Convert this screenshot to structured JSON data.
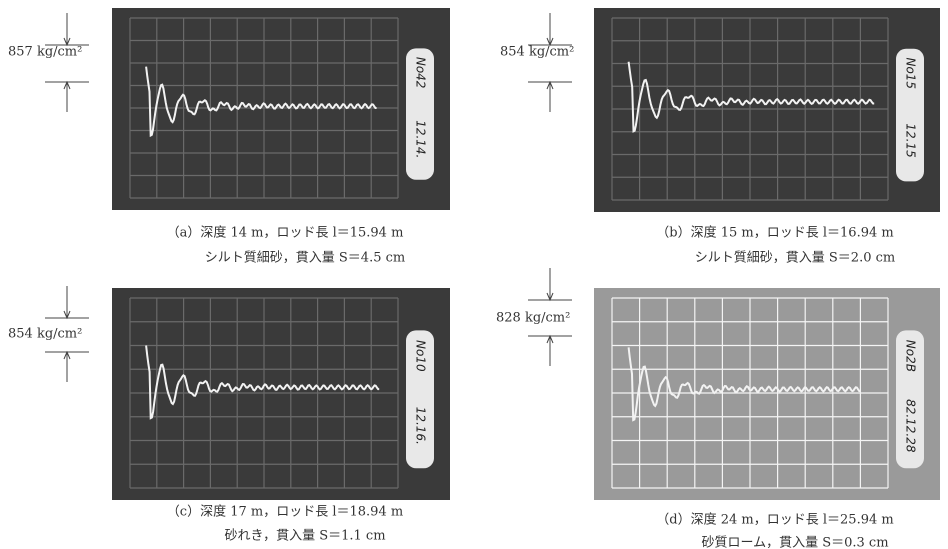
{
  "panels": [
    {
      "scale_label": "857 kg/cm²",
      "caption": [
        "（a）深度 14 m，ロッド長 l＝15.94 m",
        "シルト質細砂，貫入量 S＝4.5 cm"
      ],
      "photo_notes": [
        "No42",
        "12.14."
      ]
    },
    {
      "scale_label": "854 kg/cm²",
      "caption": [
        "（b）深度 15 m，ロッド長 l＝16.94 m",
        "シルト質細砂，貫入量 S＝2.0 cm"
      ],
      "photo_notes": [
        "No15",
        "12.15"
      ]
    },
    {
      "scale_label": "854 kg/cm²",
      "caption": [
        "（c）深度 17 m，ロッド長 l＝18.94 m",
        "砂れき，貫入量 S＝1.1 cm"
      ],
      "photo_notes": [
        "No10",
        "12.16."
      ]
    },
    {
      "scale_label": "828 kg/cm²",
      "caption": [
        "（d）深度 24 m，ロッド長 l＝25.94 m",
        "砂質ローム，貫入量 S＝0.3 cm"
      ],
      "photo_notes": [
        "No2B",
        "82.12.28"
      ]
    }
  ]
}
